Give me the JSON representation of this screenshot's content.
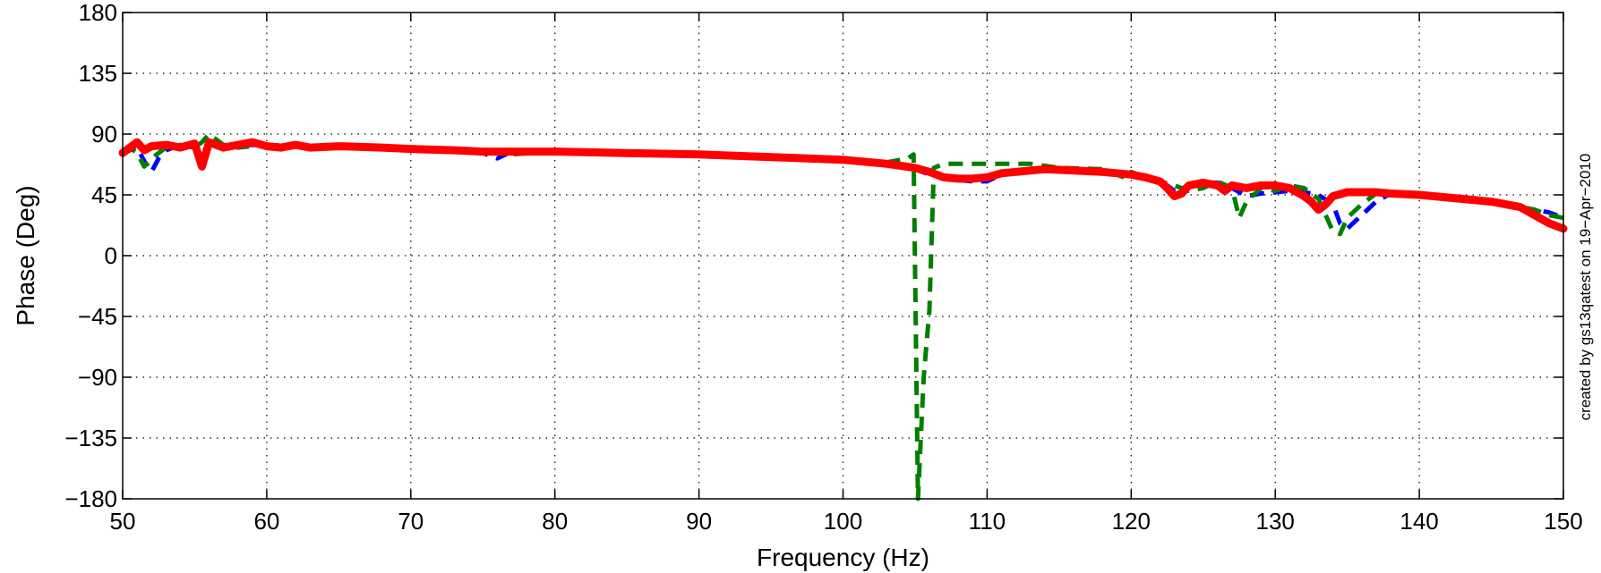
{
  "chart_data": {
    "type": "line",
    "title": "",
    "xlabel": "Frequency (Hz)",
    "ylabel": "Phase (Deg)",
    "xlim": [
      50,
      150
    ],
    "ylim": [
      -180,
      180
    ],
    "x_ticks": [
      50,
      60,
      70,
      80,
      90,
      100,
      110,
      120,
      130,
      140,
      150
    ],
    "y_ticks": [
      -180,
      -135,
      -90,
      -45,
      0,
      45,
      90,
      135,
      180
    ],
    "x_tick_labels": [
      "50",
      "60",
      "70",
      "80",
      "90",
      "100",
      "110",
      "120",
      "130",
      "140",
      "150"
    ],
    "y_tick_labels": [
      "−180",
      "−135",
      "−90",
      "−45",
      "0",
      "45",
      "90",
      "135",
      "180"
    ],
    "grid": true,
    "side_annotation": "created by gs13qatest on 19−Apr−2010",
    "series": [
      {
        "color": "#0000ff",
        "style": "dashed",
        "x": [
          50,
          50.5,
          51,
          51.5,
          52,
          52.5,
          53,
          54,
          55,
          55.5,
          56,
          57,
          58,
          60,
          62,
          65,
          68,
          70,
          73,
          75,
          76,
          77,
          80,
          85,
          90,
          95,
          100,
          103,
          105,
          106,
          108,
          109,
          110,
          111,
          112,
          115,
          118,
          120,
          122,
          123,
          124,
          125,
          126,
          127,
          128,
          129,
          130,
          131,
          132,
          133,
          134,
          134.5,
          135,
          136,
          137,
          138,
          140,
          143,
          145,
          147,
          148,
          149,
          150
        ],
        "y": [
          75,
          78,
          80,
          70,
          62,
          72,
          78,
          82,
          80,
          72,
          83,
          80,
          82,
          82,
          81,
          80,
          79,
          79,
          78,
          76,
          72,
          77,
          77,
          76,
          75,
          73,
          70,
          68,
          64,
          60,
          56,
          55,
          55,
          60,
          62,
          63,
          62,
          60,
          56,
          48,
          52,
          54,
          54,
          50,
          44,
          46,
          47,
          48,
          47,
          45,
          38,
          24,
          20,
          30,
          40,
          46,
          44,
          42,
          40,
          36,
          34,
          32,
          28
        ]
      },
      {
        "color": "#007f00",
        "style": "dashed",
        "x": [
          50,
          50.5,
          51,
          51.5,
          52,
          53,
          54,
          55,
          55.5,
          56,
          57,
          58,
          60,
          62,
          65,
          68,
          70,
          73,
          75,
          76,
          77,
          80,
          85,
          90,
          95,
          100,
          103,
          104.5,
          104.9,
          105.2,
          105.6,
          106,
          106.3,
          107,
          110,
          113,
          115,
          118,
          119.5,
          120,
          121,
          122,
          123,
          124,
          125,
          126,
          127,
          127.5,
          128,
          129,
          130,
          131,
          132,
          133,
          133.5,
          134,
          134.5,
          135,
          136,
          137,
          138,
          140,
          143,
          145,
          147,
          148,
          149,
          150
        ],
        "y": [
          78,
          80,
          76,
          66,
          72,
          80,
          82,
          80,
          84,
          90,
          82,
          80,
          82,
          81,
          80,
          79,
          79,
          78,
          77,
          76,
          75,
          77,
          76,
          75,
          73,
          71,
          69,
          72,
          75,
          -180,
          -90,
          -40,
          65,
          68,
          68,
          68,
          65,
          64,
          58,
          62,
          58,
          55,
          52,
          48,
          50,
          55,
          50,
          28,
          40,
          50,
          48,
          52,
          50,
          42,
          30,
          18,
          16,
          28,
          38,
          46,
          46,
          44,
          42,
          40,
          36,
          34,
          30,
          28
        ]
      },
      {
        "color": "#ff0000",
        "style": "solid",
        "x": [
          50,
          50.5,
          51,
          51.5,
          52,
          53,
          54,
          55,
          55.5,
          56,
          57,
          58,
          59,
          60,
          61,
          62,
          63,
          65,
          68,
          70,
          73,
          75,
          77,
          80,
          85,
          90,
          95,
          100,
          103,
          105,
          106,
          107,
          108,
          109,
          110,
          111,
          112,
          114,
          116,
          118,
          120,
          121,
          122,
          122.5,
          123,
          123.5,
          124,
          125,
          126,
          126.5,
          127,
          128,
          129,
          130,
          131,
          132,
          132.5,
          133,
          133.5,
          134,
          135,
          136,
          137,
          138,
          140,
          142,
          145,
          146,
          147,
          148,
          149,
          150
        ],
        "y": [
          76,
          80,
          84,
          78,
          81,
          82,
          80,
          83,
          66,
          84,
          80,
          82,
          84,
          81,
          80,
          82,
          80,
          81,
          80,
          79,
          78,
          77,
          77,
          77,
          76,
          75,
          73,
          71,
          68,
          65,
          62,
          58,
          57,
          57,
          58,
          61,
          62,
          64,
          63,
          62,
          60,
          58,
          55,
          50,
          44,
          46,
          52,
          54,
          52,
          48,
          52,
          50,
          52,
          52,
          50,
          44,
          40,
          34,
          38,
          44,
          47,
          47,
          47,
          46,
          45,
          43,
          40,
          38,
          36,
          30,
          24,
          20
        ]
      }
    ]
  }
}
